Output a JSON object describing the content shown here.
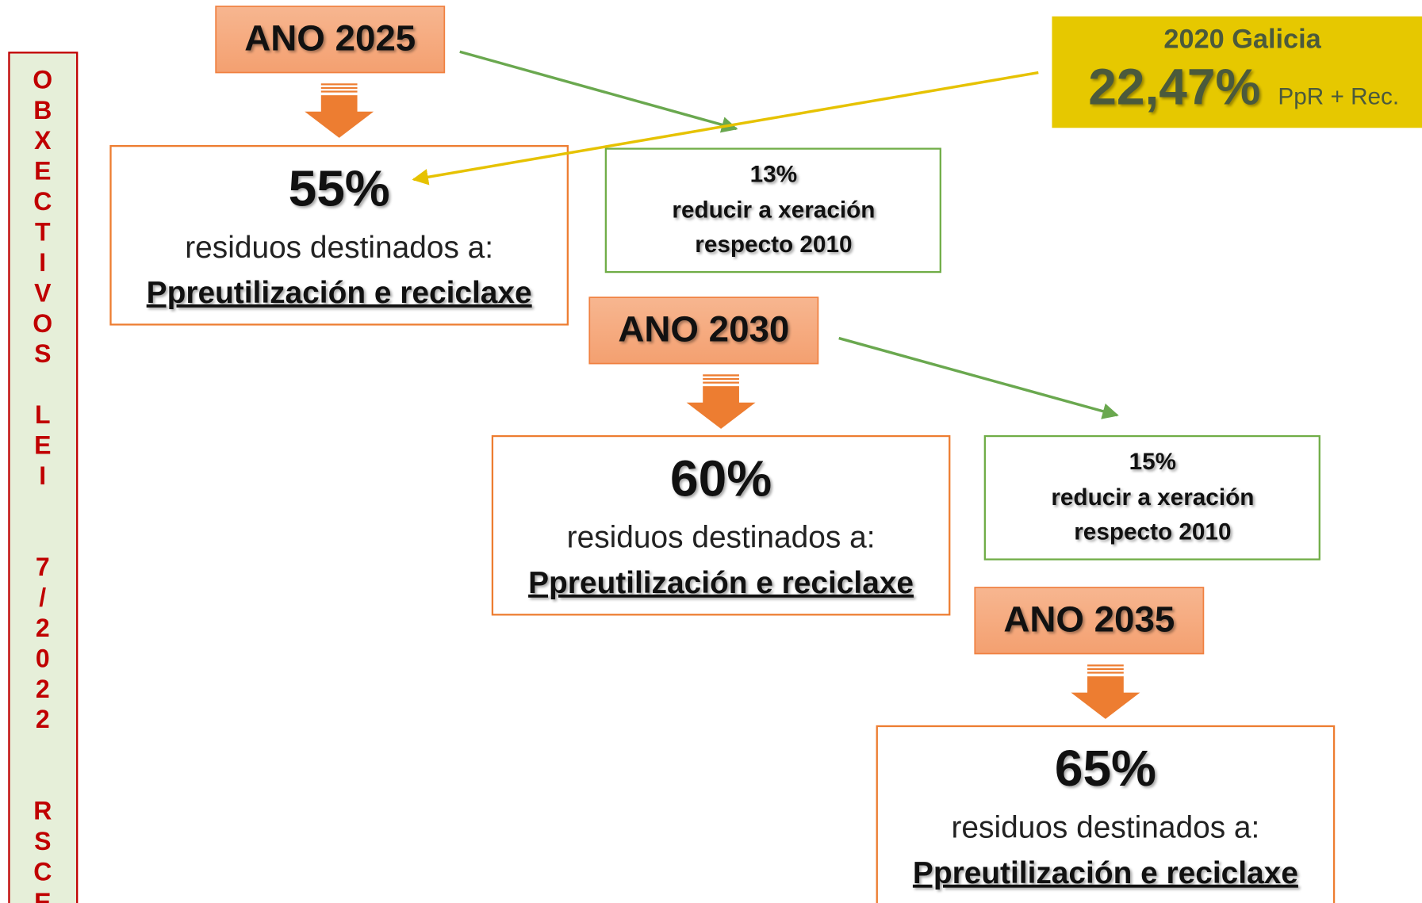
{
  "sidebar": {
    "words": [
      "OBXECTIVOS",
      "LEI",
      "7/2022",
      "RSCEC"
    ]
  },
  "galicia": {
    "title": "2020 Galicia",
    "value": "22,47%",
    "note": "PpR + Rec."
  },
  "stages": [
    {
      "year": "ANO 2025",
      "percent": "55%",
      "text": "residuos destinados a:",
      "target": "Ppreutilización e reciclaxe",
      "reduction": {
        "percent": "13%",
        "line1": "reducir a xeración",
        "line2": "respecto 2010"
      }
    },
    {
      "year": "ANO 2030",
      "percent": "60%",
      "text": "residuos destinados a:",
      "target": "Ppreutilización e reciclaxe",
      "reduction": {
        "percent": "15%",
        "line1": "reducir a xeración",
        "line2": "respecto 2010"
      }
    },
    {
      "year": "ANO 2035",
      "percent": "65%",
      "text": "residuos destinados a:",
      "target": "Ppreutilización e reciclaxe"
    }
  ]
}
